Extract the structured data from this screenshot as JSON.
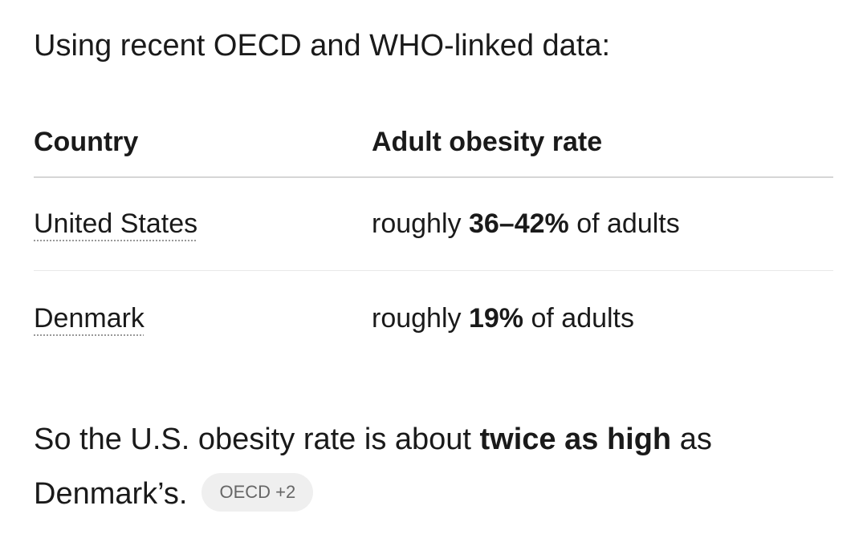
{
  "intro": "Using recent OECD and WHO-linked data:",
  "table": {
    "headers": [
      "Country",
      "Adult obesity rate"
    ],
    "rows": [
      [
        "United States",
        [
          "roughly ",
          "36–42%",
          " of adults"
        ]
      ],
      [
        "Denmark",
        [
          "roughly ",
          "19%",
          " of adults"
        ]
      ]
    ]
  },
  "conclusion": [
    "So the U.S. obesity rate is about ",
    "twice as high",
    " as Denmark’s."
  ],
  "citation": {
    "source": "OECD",
    "more": "+2"
  }
}
